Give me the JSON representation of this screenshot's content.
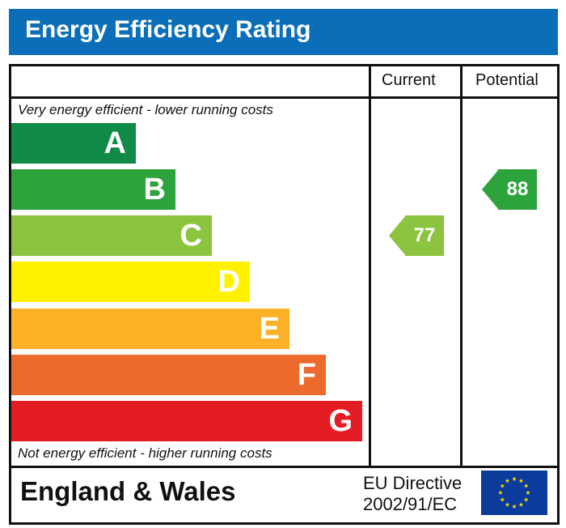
{
  "header": {
    "title": "Energy Efficiency Rating"
  },
  "columns": {
    "current": "Current",
    "potential": "Potential"
  },
  "notes": {
    "top": "Very energy efficient - lower running costs",
    "bottom": "Not energy efficient - higher running costs"
  },
  "footer": {
    "region": "England & Wales",
    "directive_line1": "EU Directive",
    "directive_line2": "2002/91/EC"
  },
  "chart_data": {
    "type": "bar",
    "categories": [
      "A",
      "B",
      "C",
      "D",
      "E",
      "F",
      "G"
    ],
    "band_colors": [
      "#0f8a47",
      "#2da33c",
      "#8dc43f",
      "#fff200",
      "#fcb126",
      "#ec6a2c",
      "#e31d23"
    ],
    "current": {
      "value": 77,
      "band": "C",
      "color": "#8dc43f"
    },
    "potential": {
      "value": 88,
      "band": "B",
      "color": "#2da33c"
    }
  }
}
